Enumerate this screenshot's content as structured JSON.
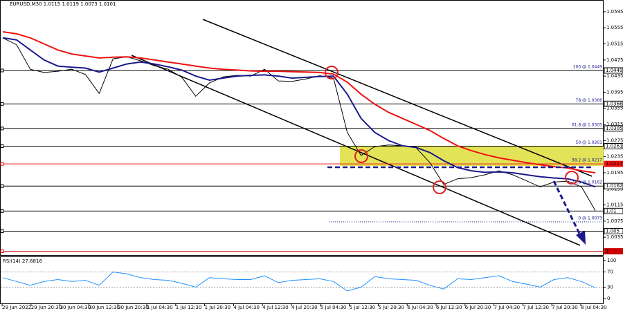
{
  "chart_data": {
    "type": "line",
    "title": "EURUSD,M30  1.0115 1.0119 1.0073 1.0101",
    "xtick_labels": [
      "29 Jun 2022",
      "29 Jun 20:30",
      "30 Jun 04:30",
      "30 Jun 12:30",
      "30 Jun 20:30",
      "1 Jul 04:30",
      "1 Jul 12:30",
      "1 Jul 20:30",
      "4 Jul 04:30",
      "4 Jul 12:30",
      "4 Jul 20:30",
      "5 Jul 04:30",
      "5 Jul 12:30",
      "5 Jul 20:30",
      "6 Jul 04:30",
      "6 Jul 12:30",
      "6 Jul 20:30",
      "7 Jul 04:30",
      "7 Jul 12:30",
      "7 Jul 20:30",
      "8 Jul 04:30"
    ],
    "ylim": [
      0.9989,
      1.0624
    ],
    "yticks": [
      1.0595,
      1.0555,
      1.0515,
      1.0475,
      1.0435,
      1.0395,
      1.0355,
      1.0315,
      1.0275,
      1.0235,
      1.0195,
      1.0155,
      1.0115,
      1.0075,
      1.0035
    ],
    "series": [
      {
        "color": "#000000",
        "values": [
          1.053,
          1.0513,
          1.0452,
          1.0444,
          1.0447,
          1.0452,
          1.0439,
          1.0392,
          1.0478,
          1.0483,
          1.0473,
          1.0461,
          1.0452,
          1.0432,
          1.0385,
          1.0418,
          1.0433,
          1.0437,
          1.0435,
          1.0452,
          1.0423,
          1.0422,
          1.0428,
          1.0436,
          1.043,
          1.0295,
          1.0238,
          1.026,
          1.0264,
          1.0262,
          1.0257,
          1.022,
          1.0166,
          1.018,
          1.0183,
          1.019,
          1.02,
          1.019,
          1.0175,
          1.016,
          1.0172,
          1.0174,
          1.016,
          1.0101
        ]
      },
      {
        "color": "#ee1111",
        "values": [
          1.0545,
          1.054,
          1.053,
          1.0515,
          1.05,
          1.049,
          1.0485,
          1.048,
          1.0482,
          1.0483,
          1.048,
          1.0475,
          1.047,
          1.0465,
          1.046,
          1.0455,
          1.0452,
          1.045,
          1.0448,
          1.0447,
          1.0447,
          1.0446,
          1.0445,
          1.0444,
          1.044,
          1.042,
          1.039,
          1.0365,
          1.0345,
          1.033,
          1.0315,
          1.03,
          1.028,
          1.0262,
          1.025,
          1.024,
          1.0232,
          1.0226,
          1.022,
          1.0215,
          1.021,
          1.0207,
          1.02,
          1.0195
        ]
      },
      {
        "color": "#1a1a8c",
        "values": [
          1.053,
          1.0525,
          1.05,
          1.0475,
          1.046,
          1.0457,
          1.0455,
          1.0445,
          1.0455,
          1.0465,
          1.047,
          1.0465,
          1.0458,
          1.045,
          1.0435,
          1.0425,
          1.043,
          1.0435,
          1.0437,
          1.0438,
          1.0435,
          1.043,
          1.0432,
          1.0434,
          1.0435,
          1.039,
          1.033,
          1.0295,
          1.0275,
          1.0262,
          1.0258,
          1.0245,
          1.0225,
          1.0208,
          1.02,
          1.0196,
          1.0197,
          1.0195,
          1.019,
          1.0185,
          1.0182,
          1.018,
          1.0172,
          1.016
        ]
      }
    ],
    "levels": [
      {
        "value": 1.0449,
        "color": "#000000"
      },
      {
        "value": 1.0366,
        "color": "#000000"
      },
      {
        "value": 1.0305,
        "color": "#000000"
      },
      {
        "value": 1.0261,
        "color": "#000000"
      },
      {
        "value": 1.0217,
        "color": "#ee1111"
      },
      {
        "value": 1.0162,
        "color": "#000000"
      },
      {
        "value": 1.01,
        "color": "#000000"
      },
      {
        "value": 1.005,
        "color": "#000000"
      },
      {
        "value": 1.0,
        "color": "#cc0000"
      }
    ],
    "fib_labels": [
      {
        "label": "100 @ 1.0449",
        "value": 1.0449
      },
      {
        "label": "78 @ 1.0366",
        "value": 1.0366
      },
      {
        "label": "61.8 @ 1.0305",
        "value": 1.0305
      },
      {
        "label": "50 @ 1.0261",
        "value": 1.0261
      },
      {
        "label": "38.2 @ 1.0217",
        "value": 1.0217
      },
      {
        "label": "23.6 @ 1.0162",
        "value": 1.0162
      },
      {
        "label": "0 @ 1.0073",
        "value": 1.0073
      }
    ],
    "rsi": {
      "title": "RSI(14) 27.6816",
      "color": "#1e90ff",
      "ylim": [
        0,
        100
      ],
      "yticks": [
        100,
        70,
        30,
        0
      ],
      "values": [
        55,
        45,
        35,
        45,
        50,
        45,
        48,
        35,
        70,
        65,
        55,
        50,
        48,
        40,
        30,
        55,
        52,
        50,
        50,
        60,
        42,
        48,
        50,
        52,
        45,
        20,
        30,
        58,
        52,
        50,
        48,
        35,
        25,
        52,
        50,
        55,
        60,
        45,
        38,
        30,
        50,
        55,
        45,
        28
      ]
    }
  }
}
